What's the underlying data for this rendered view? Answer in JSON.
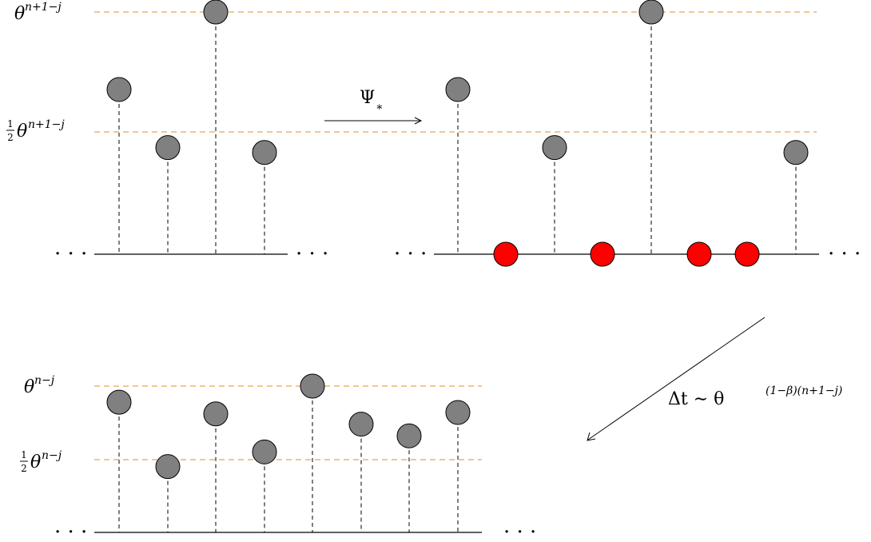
{
  "colors": {
    "guide_line": "#f0a050",
    "axis": "#000000",
    "stem": "#000000",
    "particle": "#808080",
    "new_particle": "#ff0000"
  },
  "labels": {
    "top_left_level_high": {
      "base": "θ",
      "exp": "n+1−j"
    },
    "top_left_level_low": {
      "num": "1",
      "den": "2",
      "base": "θ",
      "exp": "n+1−j"
    },
    "bottom_level_high": {
      "base": "θ",
      "exp": "n−j"
    },
    "bottom_level_low": {
      "num": "1",
      "den": "2",
      "base": "θ",
      "exp": "n−j"
    },
    "map_label": {
      "base": "Ψ",
      "sub": "∗"
    },
    "time_step": {
      "lead": "Δt ∼ θ",
      "exp": "(1−β)(n+1−j)"
    },
    "ellipsis": "· · ·"
  },
  "panels": {
    "top_left": {
      "particles": [
        {
          "level": 0.68,
          "kind": "grey"
        },
        {
          "level": 0.44,
          "kind": "grey"
        },
        {
          "level": 1.0,
          "kind": "grey"
        },
        {
          "level": 0.42,
          "kind": "grey"
        }
      ]
    },
    "top_right": {
      "particles": [
        {
          "level": 0.68,
          "kind": "grey"
        },
        {
          "level": 0.0,
          "kind": "red"
        },
        {
          "level": 0.44,
          "kind": "grey"
        },
        {
          "level": 0.0,
          "kind": "red"
        },
        {
          "level": 1.0,
          "kind": "grey"
        },
        {
          "level": 0.0,
          "kind": "red"
        },
        {
          "level": 0.0,
          "kind": "red"
        },
        {
          "level": 0.42,
          "kind": "grey"
        }
      ]
    },
    "bottom": {
      "particles": [
        {
          "level": 0.89,
          "kind": "grey"
        },
        {
          "level": 0.45,
          "kind": "grey"
        },
        {
          "level": 0.81,
          "kind": "grey"
        },
        {
          "level": 0.55,
          "kind": "grey"
        },
        {
          "level": 1.0,
          "kind": "grey"
        },
        {
          "level": 0.74,
          "kind": "grey"
        },
        {
          "level": 0.66,
          "kind": "grey"
        },
        {
          "level": 0.82,
          "kind": "grey"
        }
      ]
    }
  }
}
